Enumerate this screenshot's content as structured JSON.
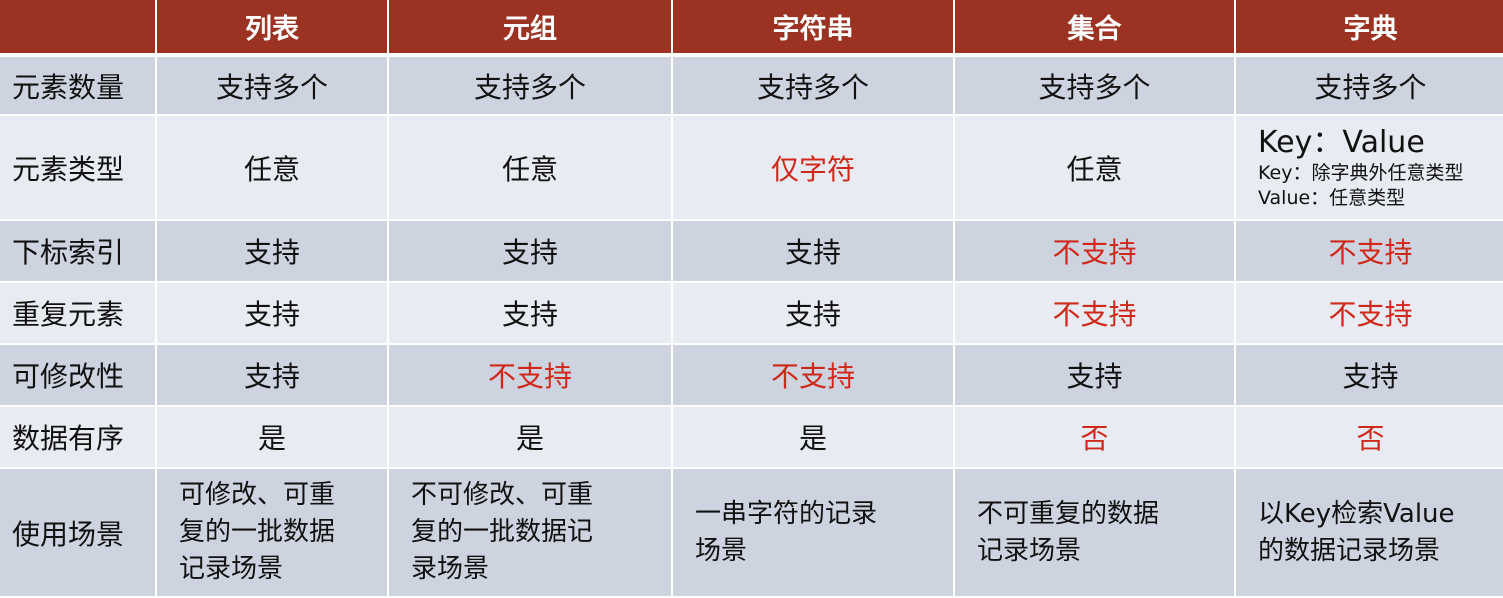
{
  "header": [
    "",
    "列表",
    "元组",
    "字符串",
    "集合",
    "字典"
  ],
  "colors": {
    "header_bg": "#9b3222",
    "row_dark": "#cdd3df",
    "row_light": "#e8ebf1",
    "highlight": "#d0291b"
  },
  "rows": [
    {
      "label": "元素数量",
      "cells": [
        {
          "text": "支持多个"
        },
        {
          "text": "支持多个"
        },
        {
          "text": "支持多个"
        },
        {
          "text": "支持多个"
        },
        {
          "text": "支持多个"
        }
      ]
    },
    {
      "label": "元素类型",
      "cells": [
        {
          "text": "任意"
        },
        {
          "text": "任意"
        },
        {
          "text": "仅字符",
          "red": true
        },
        {
          "text": "任意"
        },
        {
          "text": "Key：Value",
          "sub": [
            "Key：除字典外任意类型",
            "Value：任意类型"
          ]
        }
      ]
    },
    {
      "label": "下标索引",
      "cells": [
        {
          "text": "支持"
        },
        {
          "text": "支持"
        },
        {
          "text": "支持"
        },
        {
          "text": "不支持",
          "red": true
        },
        {
          "text": "不支持",
          "red": true
        }
      ]
    },
    {
      "label": "重复元素",
      "cells": [
        {
          "text": "支持"
        },
        {
          "text": "支持"
        },
        {
          "text": "支持"
        },
        {
          "text": "不支持",
          "red": true
        },
        {
          "text": "不支持",
          "red": true
        }
      ]
    },
    {
      "label": "可修改性",
      "cells": [
        {
          "text": "支持"
        },
        {
          "text": "不支持",
          "red": true
        },
        {
          "text": "不支持",
          "red": true
        },
        {
          "text": "支持"
        },
        {
          "text": "支持"
        }
      ]
    },
    {
      "label": "数据有序",
      "cells": [
        {
          "text": "是"
        },
        {
          "text": "是"
        },
        {
          "text": "是"
        },
        {
          "text": "否",
          "red": true
        },
        {
          "text": "否",
          "red": true
        }
      ]
    },
    {
      "label": "使用场景",
      "cells": [
        {
          "lines": [
            "可修改、可重",
            "复的一批数据",
            "记录场景"
          ]
        },
        {
          "lines": [
            "不可修改、可重",
            "复的一批数据记",
            "录场景"
          ]
        },
        {
          "lines": [
            "一串字符的记录",
            "场景"
          ]
        },
        {
          "lines": [
            "不可重复的数据",
            "记录场景"
          ]
        },
        {
          "lines": [
            "以Key检索Value",
            "的数据记录场景"
          ]
        }
      ]
    }
  ]
}
